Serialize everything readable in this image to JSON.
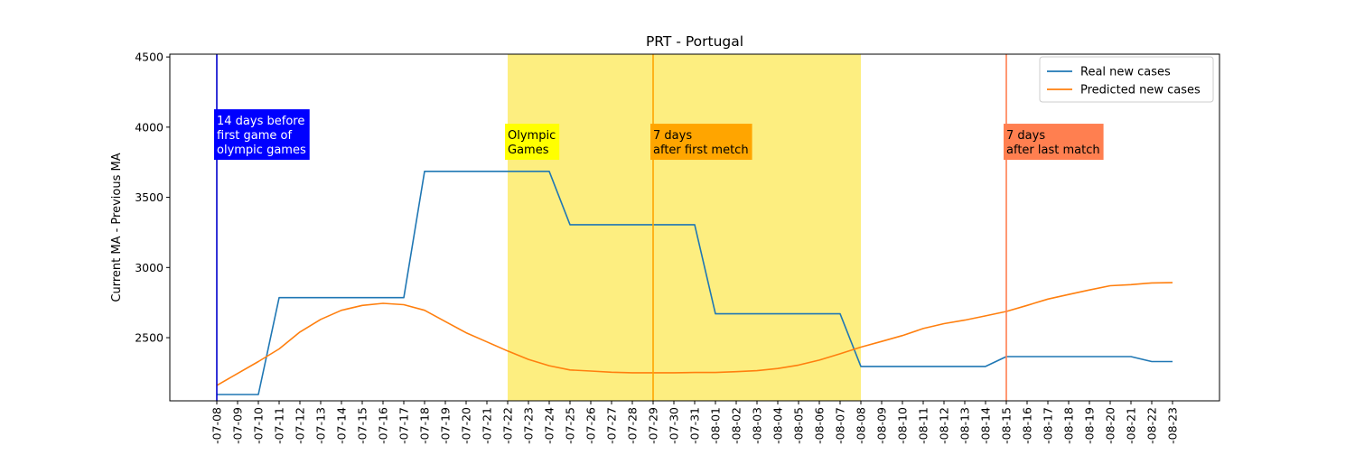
{
  "chart_data": {
    "type": "line",
    "title": "PRT - Portugal",
    "xlabel": "",
    "ylabel": "Current MA - Previous MA",
    "x": [
      "2021-07-08",
      "2021-07-09",
      "2021-07-10",
      "2021-07-11",
      "2021-07-12",
      "2021-07-13",
      "2021-07-14",
      "2021-07-15",
      "2021-07-16",
      "2021-07-17",
      "2021-07-18",
      "2021-07-19",
      "2021-07-20",
      "2021-07-21",
      "2021-07-22",
      "2021-07-23",
      "2021-07-24",
      "2021-07-25",
      "2021-07-26",
      "2021-07-27",
      "2021-07-28",
      "2021-07-29",
      "2021-07-30",
      "2021-07-31",
      "2021-08-01",
      "2021-08-02",
      "2021-08-03",
      "2021-08-04",
      "2021-08-05",
      "2021-08-06",
      "2021-08-07",
      "2021-08-08",
      "2021-08-09",
      "2021-08-10",
      "2021-08-11",
      "2021-08-12",
      "2021-08-13",
      "2021-08-14",
      "2021-08-15",
      "2021-08-16",
      "2021-08-17",
      "2021-08-18",
      "2021-08-19",
      "2021-08-20",
      "2021-08-21",
      "2021-08-22",
      "2021-08-23"
    ],
    "x_tick_labels": [
      "-07-08",
      "-07-09",
      "-07-10",
      "-07-11",
      "-07-12",
      "-07-13",
      "-07-14",
      "-07-15",
      "-07-16",
      "-07-17",
      "-07-18",
      "-07-19",
      "-07-20",
      "-07-21",
      "-07-22",
      "-07-23",
      "-07-24",
      "-07-25",
      "-07-26",
      "-07-27",
      "-07-28",
      "-07-29",
      "-07-30",
      "-07-31",
      "-08-01",
      "-08-02",
      "-08-03",
      "-08-04",
      "-08-05",
      "-08-06",
      "-08-07",
      "-08-08",
      "-08-09",
      "-08-10",
      "-08-11",
      "-08-12",
      "-08-13",
      "-08-14",
      "-08-15",
      "-08-16",
      "-08-17",
      "-08-18",
      "-08-19",
      "-08-20",
      "-08-21",
      "-08-22",
      "-08-23"
    ],
    "y_ticks": [
      2500,
      3000,
      3500,
      4000,
      4500
    ],
    "ylim": [
      2050,
      4520
    ],
    "grid": false,
    "legend_position": "top-right",
    "series": [
      {
        "name": "Real new cases",
        "color": "#1f77b4",
        "values": [
          2095,
          2095,
          2095,
          2785,
          2785,
          2785,
          2785,
          2785,
          2785,
          2785,
          3685,
          3685,
          3685,
          3685,
          3685,
          3685,
          3685,
          3305,
          3305,
          3305,
          3305,
          3305,
          3305,
          3305,
          2670,
          2670,
          2670,
          2670,
          2670,
          2670,
          2670,
          2295,
          2295,
          2295,
          2295,
          2295,
          2295,
          2295,
          2365,
          2365,
          2365,
          2365,
          2365,
          2365,
          2365,
          2330,
          2330
        ]
      },
      {
        "name": "Predicted new cases",
        "color": "#ff7f0e",
        "values": [
          2160,
          2245,
          2330,
          2420,
          2540,
          2630,
          2695,
          2730,
          2745,
          2735,
          2695,
          2615,
          2535,
          2470,
          2405,
          2345,
          2300,
          2270,
          2262,
          2254,
          2250,
          2250,
          2250,
          2252,
          2252,
          2258,
          2265,
          2280,
          2305,
          2340,
          2385,
          2433,
          2473,
          2515,
          2565,
          2600,
          2625,
          2655,
          2687,
          2730,
          2775,
          2808,
          2840,
          2870,
          2878,
          2890,
          2892
        ]
      }
    ],
    "shaded_regions": [
      {
        "start": "2021-07-22",
        "end": "2021-08-08",
        "color": "#fdee80"
      }
    ],
    "vertical_lines": [
      {
        "x": "2021-07-08",
        "color": "#0000cd"
      },
      {
        "x": "2021-07-29",
        "color": "#ffa500"
      },
      {
        "x": "2021-08-15",
        "color": "#ff7f50"
      }
    ],
    "annotations": [
      {
        "lines": [
          "14 days before",
          "first game of",
          "olympic games"
        ],
        "x": "2021-07-08",
        "y": 3780,
        "box_color": "#0000ff",
        "text_color": "#ffffff"
      },
      {
        "lines": [
          "Olympic",
          "Games"
        ],
        "x": "2021-07-22",
        "y": 3780,
        "box_color": "#ffff00",
        "text_color": "#000000"
      },
      {
        "lines": [
          "7 days",
          "after first metch"
        ],
        "x": "2021-07-29",
        "y": 3780,
        "box_color": "#ffa500",
        "text_color": "#000000"
      },
      {
        "lines": [
          "7 days",
          "after last match"
        ],
        "x": "2021-08-15",
        "y": 3780,
        "box_color": "#ff7f50",
        "text_color": "#000000"
      }
    ]
  }
}
